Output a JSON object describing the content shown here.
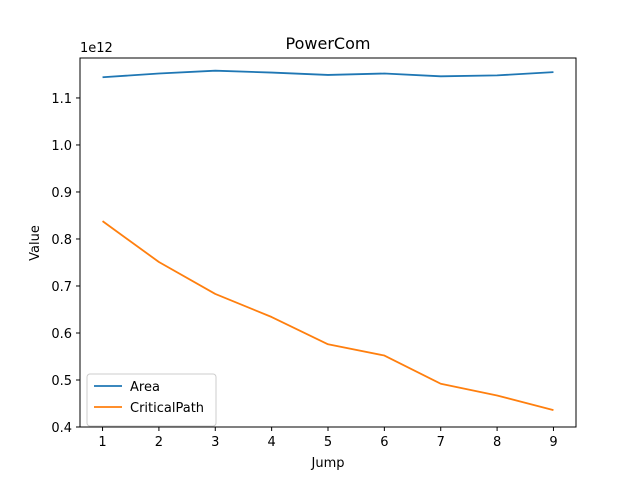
{
  "chart_data": {
    "type": "line",
    "title": "PowerCom",
    "xlabel": "Jump",
    "ylabel": "Value",
    "offset_text": "1e12",
    "x": [
      1,
      2,
      3,
      4,
      5,
      6,
      7,
      8,
      9
    ],
    "xticks": [
      "1",
      "2",
      "3",
      "4",
      "5",
      "6",
      "7",
      "8",
      "9"
    ],
    "yticks": [
      "0.4",
      "0.5",
      "0.6",
      "0.7",
      "0.8",
      "0.9",
      "1.0",
      "1.1"
    ],
    "ylim": [
      0.4,
      1.185
    ],
    "grid": false,
    "legend_position": "lower-left",
    "series": [
      {
        "name": "Area",
        "color": "#1f77b4",
        "values": [
          1.144,
          1.152,
          1.158,
          1.154,
          1.149,
          1.152,
          1.146,
          1.148,
          1.155
        ]
      },
      {
        "name": "CriticalPath",
        "color": "#ff7f0e",
        "values": [
          0.838,
          0.751,
          0.683,
          0.634,
          0.576,
          0.552,
          0.492,
          0.467,
          0.436
        ]
      }
    ]
  }
}
